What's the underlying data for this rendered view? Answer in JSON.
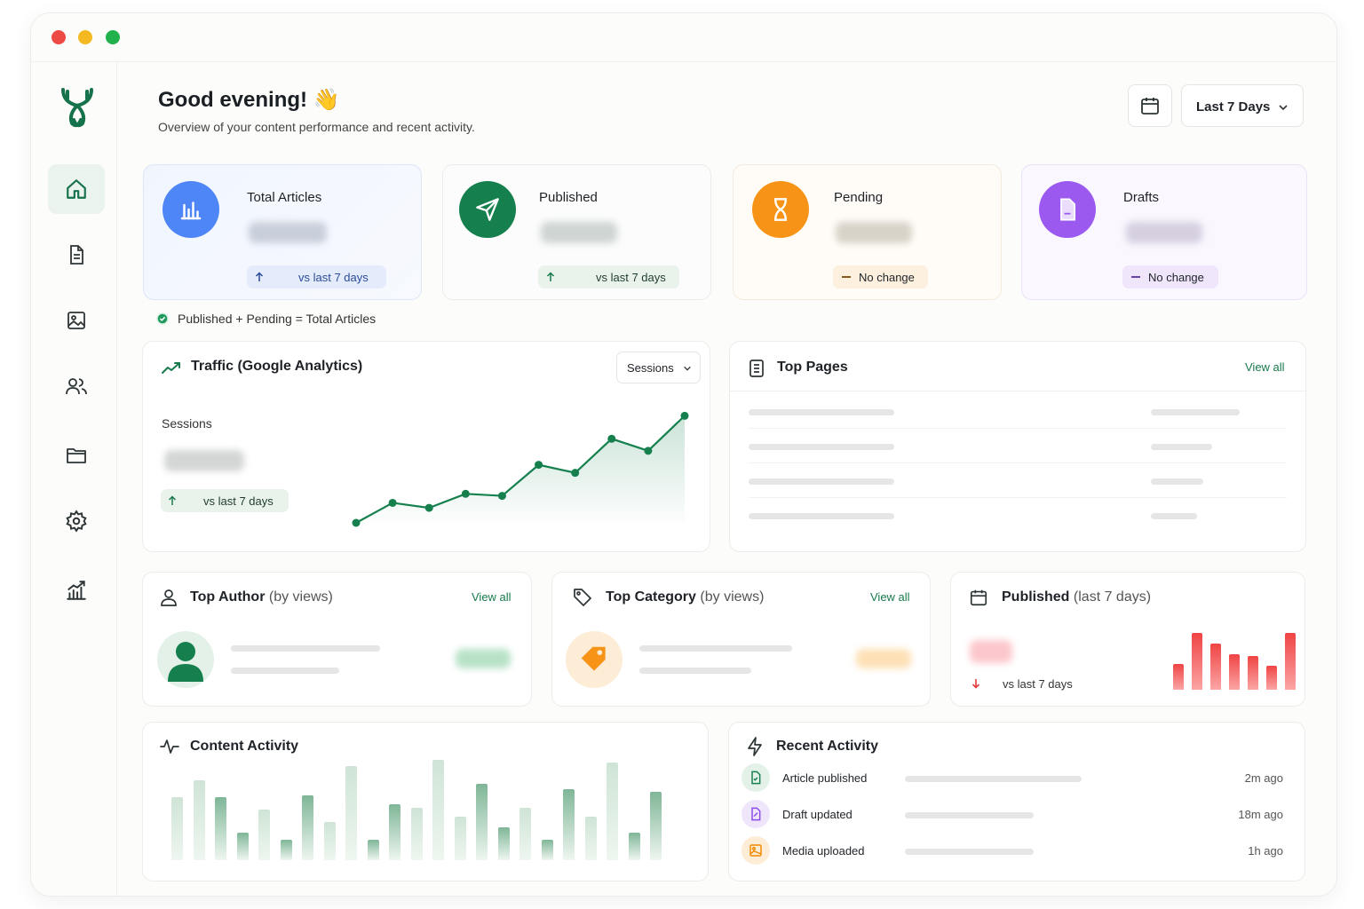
{
  "colors": {
    "brand": "#177a4c",
    "blue": "#4f86f7",
    "green": "#15804e",
    "orange": "#f79418",
    "purple": "#9b59f0",
    "red": "#ef4444"
  },
  "header": {
    "greeting": "Good evening!",
    "wave": "👋",
    "subtitle": "Overview of your content performance and recent activity.",
    "range_label": "Last 7 Days"
  },
  "sidebar": {
    "items": [
      {
        "icon": "home-icon",
        "active": true
      },
      {
        "icon": "document-icon",
        "active": false
      },
      {
        "icon": "image-icon",
        "active": false
      },
      {
        "icon": "users-icon",
        "active": false
      },
      {
        "icon": "folder-icon",
        "active": false
      },
      {
        "icon": "gear-icon",
        "active": false
      },
      {
        "icon": "chart-icon",
        "active": false
      }
    ]
  },
  "stats": {
    "total": {
      "label": "Total Articles",
      "compare": "vs last 7 days"
    },
    "published": {
      "label": "Published",
      "compare": "vs last 7 days"
    },
    "pending": {
      "label": "Pending",
      "compare": "No change"
    },
    "drafts": {
      "label": "Drafts",
      "compare": "No change"
    }
  },
  "formula_note": "Published + Pending = Total Articles",
  "traffic": {
    "title": "Traffic (Google Analytics)",
    "dropdown": "Sessions",
    "metric_label": "Sessions",
    "compare": "vs last 7 days"
  },
  "chart_data": {
    "type": "area",
    "title": "Traffic (Google Analytics)",
    "series": [
      {
        "values": [
          0,
          20,
          15,
          29,
          27,
          58,
          50,
          84,
          72,
          107
        ]
      }
    ],
    "ylim": [
      0,
      110
    ],
    "grid": false
  },
  "top_pages": {
    "title": "Top Pages",
    "view_all": "View all"
  },
  "top_author": {
    "title": "Top Author",
    "suffix": "(by views)",
    "view_all": "View all"
  },
  "top_category": {
    "title": "Top Category",
    "suffix": "(by views)",
    "view_all": "View all"
  },
  "published_week": {
    "title": "Published",
    "suffix": "(last 7 days)",
    "compare": "vs last 7 days",
    "bars": [
      0.45,
      1.0,
      0.82,
      0.62,
      0.6,
      0.42,
      1.0
    ]
  },
  "content_activity": {
    "title": "Content Activity",
    "bars": [
      0.63,
      0.8,
      0.63,
      0.27,
      0.5,
      0.2,
      0.65,
      0.38,
      0.94,
      0.2,
      0.56,
      0.52,
      1.0,
      0.43,
      0.76,
      0.33,
      0.52,
      0.2,
      0.71,
      0.43,
      0.97,
      0.27,
      0.68
    ]
  },
  "recent_activity": {
    "title": "Recent Activity",
    "items": [
      {
        "label": "Article published",
        "time": "2m ago",
        "icon": "document-icon"
      },
      {
        "label": "Draft updated",
        "time": "18m ago",
        "icon": "document-icon"
      },
      {
        "label": "Media uploaded",
        "time": "1h ago",
        "icon": "image-icon"
      }
    ]
  }
}
